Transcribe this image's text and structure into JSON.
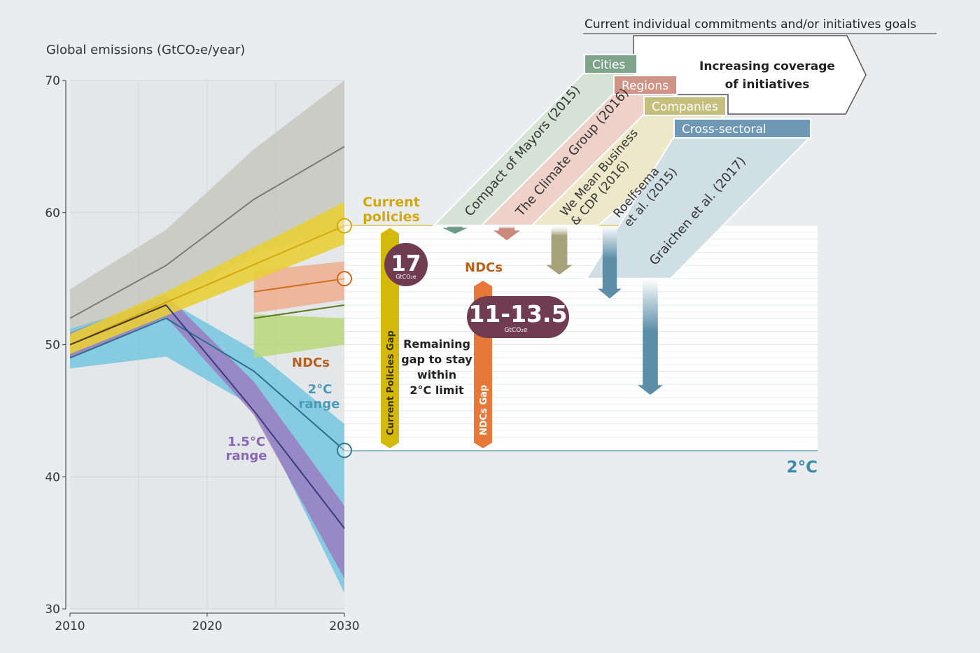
{
  "chart_data": {
    "type": "area",
    "ylabel": "Global emissions (GtCO₂e/year)",
    "x_ticks": [
      "2010",
      "2020",
      "2030"
    ],
    "y_ticks": [
      "30",
      "40",
      "50",
      "60",
      "70"
    ],
    "xlim": [
      2010,
      2030
    ],
    "ylim": [
      30,
      70
    ],
    "series": [
      {
        "key": "baseline",
        "color": "#7b7d74",
        "band_color": "#c8cac0",
        "x": [
          2010,
          2017,
          2023.4,
          2030
        ],
        "y": [
          52,
          56,
          61,
          65
        ],
        "upper": [
          54.2,
          58.7,
          64.8,
          70
        ],
        "lower": [
          49.6,
          53.1,
          56.9,
          58.8
        ]
      },
      {
        "key": "current_policies",
        "name": "Current policies",
        "color": "#d4a80d",
        "band_color": "#e8cf37",
        "x": [
          2010,
          2017,
          2030
        ],
        "y": [
          50,
          53.2,
          59
        ],
        "upper": [
          50.8,
          54,
          60.8
        ],
        "lower": [
          49.3,
          52.2,
          57.6
        ]
      },
      {
        "key": "ndcs",
        "name": "NDCs",
        "color": "#d1711f",
        "band_color": "#f1a27c",
        "x": [
          2023.4,
          2030
        ],
        "y": [
          54,
          55
        ],
        "upper": [
          55.6,
          56.3
        ],
        "lower": [
          52.4,
          53.4
        ],
        "second_line": {
          "color": "#5f7d1f",
          "y": [
            52,
            53
          ]
        },
        "second_band": {
          "color": "#b9d77a",
          "upper": [
            52.3,
            52
          ],
          "lower": [
            49,
            50
          ]
        }
      },
      {
        "key": "two_c",
        "name": "2°C range",
        "color": "#2e6d8c",
        "band_color": "#76c6e0",
        "x": [
          2010,
          2017,
          2023.4,
          2030
        ],
        "y": [
          49,
          52,
          48,
          42
        ],
        "upper": [
          51.2,
          53.4,
          49.6,
          44
        ],
        "lower": [
          48.2,
          49.1,
          45.3,
          31.2
        ]
      },
      {
        "key": "one_five_c",
        "name": "1.5°C range",
        "color": "#3d3b7a",
        "band_color": "#9a7ec0",
        "x": [
          2010,
          2017,
          2023.4,
          2030
        ],
        "y": [
          50,
          53,
          45,
          36.1
        ],
        "upper": [
          50.9,
          53.8,
          47.2,
          37.8
        ],
        "lower": [
          49,
          52.1,
          44.7,
          32.3
        ]
      }
    ],
    "markers": [
      {
        "key": "current",
        "y": 59,
        "color": "#d4a80d"
      },
      {
        "key": "ndc",
        "y": 55,
        "color": "#c8691d"
      },
      {
        "key": "two",
        "y": 42,
        "color": "#2e7a96"
      }
    ],
    "gaps": [
      {
        "key": "current_policies_gap",
        "label": "Current Policies Gap",
        "from": 59,
        "to": 42,
        "color": "#d4b90a"
      },
      {
        "key": "ndcs_gap",
        "label": "NDCs Gap",
        "from": 55,
        "to": 42,
        "color": "#e8773a"
      }
    ],
    "bubbles": [
      {
        "key": "b17",
        "value": "17",
        "unit": "GtCO₂e",
        "color": "#6f3c50"
      },
      {
        "key": "b11",
        "value": "11-13.5",
        "unit": "GtCO₂e",
        "color": "#6f3c50"
      }
    ],
    "labels": {
      "current_policies_1": "Current",
      "current_policies_2": "policies",
      "ndcs_line": "NDCs",
      "ndcs_band": "NDCs",
      "two_c_1": "2°C",
      "two_c_2": "range",
      "one_five_1": "1.5°C",
      "one_five_2": "range",
      "remaining_1": "Remaining",
      "remaining_2": "gap to stay",
      "remaining_3": "within",
      "remaining_4": "2°C limit",
      "two_c_right": "2°C"
    },
    "initiatives": {
      "title": "Current individual commitments and/or initiatives goals",
      "arrow_text_1": "Increasing coverage",
      "arrow_text_2": "of initiatives",
      "categories": [
        {
          "key": "cities",
          "label": "Cities",
          "color": "#7ea58c",
          "band": "#d5e3d6"
        },
        {
          "key": "regions",
          "label": "Regions",
          "color": "#cf9485",
          "band": "#eed2ca"
        },
        {
          "key": "companies",
          "label": "Companies",
          "color": "#c4bf7c",
          "band": "#ece8c9"
        },
        {
          "key": "cross",
          "label": "Cross-sectoral",
          "color": "#6e98b3",
          "band": "#d0dfe6"
        }
      ],
      "studies": [
        {
          "key": "compact",
          "lines": [
            "Compact of Mayors (2015)"
          ],
          "reduction": 0.6,
          "color": "#6c9a86"
        },
        {
          "key": "climate_group",
          "lines": [
            "The Climate Group (2016)"
          ],
          "reduction": 1.1,
          "color": "#c98a7c"
        },
        {
          "key": "wmb",
          "lines": [
            "We Mean Business",
            "& CDP (2016)"
          ],
          "reduction": 3.7,
          "color": "#a7a27a"
        },
        {
          "key": "roelfsema",
          "lines": [
            "Roelfsema",
            "et al. (2015)"
          ],
          "reduction": 5.5,
          "color": "#5d8ea8"
        },
        {
          "key": "graichen",
          "lines": [
            "Graichen et al. (2017)"
          ],
          "reduction": 8.8,
          "color": "#5d8ea8"
        }
      ]
    }
  }
}
